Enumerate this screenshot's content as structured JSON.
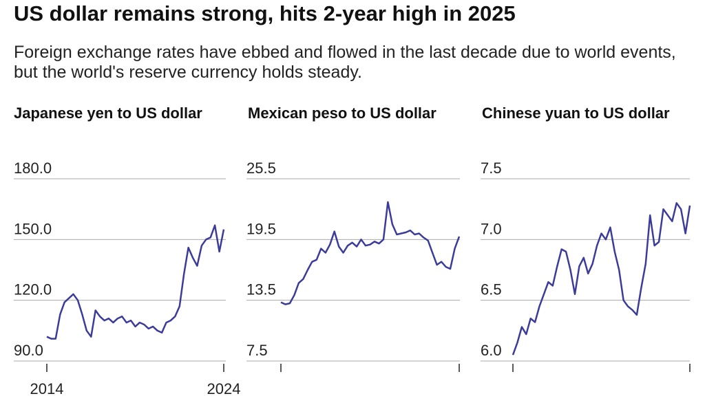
{
  "title": "US dollar remains strong, hits 2-year high in 2025",
  "subtitle": "Foreign exchange rates have ebbed and flowed in the last decade due to world events, but the world's reserve currency holds steady.",
  "chart_data": [
    {
      "type": "line",
      "title": "Japanese yen to US dollar",
      "color": "#3b3b9a",
      "grid": true,
      "show_xtick_labels": true,
      "xlim": [
        2014,
        2024
      ],
      "xticks": [
        2014,
        2024
      ],
      "ylim": [
        90,
        180
      ],
      "yticks": [
        {
          "value": 90,
          "label": "90.0"
        },
        {
          "value": 120,
          "label": "120.0"
        },
        {
          "value": 150,
          "label": "150.0"
        },
        {
          "value": 180,
          "label": "180.0"
        }
      ],
      "x": [
        2014,
        2014.25,
        2014.5,
        2014.75,
        2015,
        2015.25,
        2015.5,
        2015.75,
        2016,
        2016.25,
        2016.5,
        2016.75,
        2017,
        2017.25,
        2017.5,
        2017.75,
        2018,
        2018.25,
        2018.5,
        2018.75,
        2019,
        2019.25,
        2019.5,
        2019.75,
        2020,
        2020.25,
        2020.5,
        2020.75,
        2021,
        2021.25,
        2021.5,
        2021.75,
        2022,
        2022.25,
        2022.5,
        2022.75,
        2023,
        2023.25,
        2023.5,
        2023.75,
        2024
      ],
      "values": [
        102,
        101,
        101,
        113,
        119,
        121,
        123,
        120,
        113,
        105,
        102,
        115,
        112,
        110,
        111,
        109,
        111,
        112,
        109,
        110,
        107,
        109,
        108,
        106,
        107,
        105,
        104,
        109,
        110,
        112,
        117,
        133,
        146,
        141,
        137,
        147,
        150,
        151,
        157,
        144,
        155
      ]
    },
    {
      "type": "line",
      "title": "Mexican peso to US dollar",
      "color": "#3b3b9a",
      "grid": true,
      "show_xtick_labels": false,
      "xlim": [
        2014,
        2024
      ],
      "xticks": [
        2014,
        2024
      ],
      "ylim": [
        7.5,
        25.5
      ],
      "yticks": [
        7.5,
        13.5,
        19.5,
        25.5
      ],
      "x": [
        2014,
        2014.25,
        2014.5,
        2014.75,
        2015,
        2015.25,
        2015.5,
        2015.75,
        2016,
        2016.25,
        2016.5,
        2016.75,
        2017,
        2017.25,
        2017.5,
        2017.75,
        2018,
        2018.25,
        2018.5,
        2018.75,
        2019,
        2019.25,
        2019.5,
        2019.75,
        2020,
        2020.25,
        2020.5,
        2020.75,
        2021,
        2021.25,
        2021.5,
        2021.75,
        2022,
        2022.25,
        2022.5,
        2022.75,
        2023,
        2023.25,
        2023.5,
        2023.75,
        2024
      ],
      "values": [
        13.3,
        13.1,
        13.2,
        14.0,
        15.2,
        15.6,
        16.5,
        17.3,
        17.5,
        18.6,
        18.2,
        19.0,
        20.3,
        18.8,
        18.2,
        18.9,
        19.2,
        18.8,
        19.5,
        18.9,
        19.0,
        19.3,
        19.1,
        19.5,
        23.2,
        21.0,
        20.0,
        20.1,
        20.2,
        20.4,
        20.0,
        20.1,
        19.7,
        19.4,
        18.2,
        17.0,
        17.3,
        16.8,
        16.6,
        18.6,
        19.8
      ]
    },
    {
      "type": "line",
      "title": "Chinese yuan to US dollar",
      "color": "#3b3b9a",
      "grid": true,
      "show_xtick_labels": false,
      "xlim": [
        2014,
        2024
      ],
      "xticks": [
        2014,
        2024
      ],
      "ylim": [
        6.0,
        7.5
      ],
      "yticks": [
        {
          "value": 6.0,
          "label": "6.0"
        },
        6.5,
        {
          "value": 7.0,
          "label": "7.0"
        },
        7.5
      ],
      "x": [
        2014,
        2014.25,
        2014.5,
        2014.75,
        2015,
        2015.25,
        2015.5,
        2015.75,
        2016,
        2016.25,
        2016.5,
        2016.75,
        2017,
        2017.25,
        2017.5,
        2017.75,
        2018,
        2018.25,
        2018.5,
        2018.75,
        2019,
        2019.25,
        2019.5,
        2019.75,
        2020,
        2020.25,
        2020.5,
        2020.75,
        2021,
        2021.25,
        2021.5,
        2021.75,
        2022,
        2022.25,
        2022.5,
        2022.75,
        2023,
        2023.25,
        2023.5,
        2023.75,
        2024
      ],
      "values": [
        6.05,
        6.15,
        6.28,
        6.22,
        6.35,
        6.32,
        6.45,
        6.55,
        6.65,
        6.62,
        6.78,
        6.92,
        6.9,
        6.75,
        6.55,
        6.78,
        6.85,
        6.72,
        6.8,
        6.95,
        7.05,
        7.0,
        7.1,
        6.9,
        6.75,
        6.5,
        6.45,
        6.42,
        6.38,
        6.6,
        6.8,
        7.2,
        6.95,
        6.98,
        7.25,
        7.2,
        7.15,
        7.3,
        7.25,
        7.05,
        7.28
      ]
    }
  ]
}
